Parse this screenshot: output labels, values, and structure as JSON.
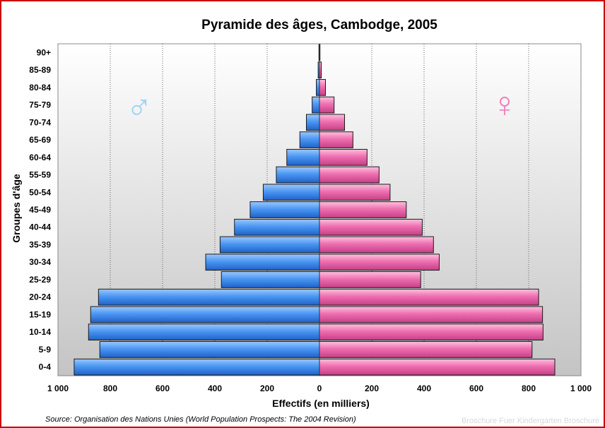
{
  "chart_data": {
    "type": "bar",
    "orientation": "horizontal-population-pyramid",
    "title": "Pyramide des âges, Cambodge, 2005",
    "xlabel": "Effectifs (en milliers)",
    "ylabel": "Groupes d'âge",
    "xlim": [
      -1000,
      1000
    ],
    "x_ticks": [
      -1000,
      -800,
      -600,
      -400,
      -200,
      0,
      200,
      400,
      600,
      800,
      1000
    ],
    "x_tick_labels": [
      "1 000",
      "800",
      "600",
      "400",
      "200",
      "0",
      "200",
      "400",
      "600",
      "800",
      "1 000"
    ],
    "grid": "vertical-dotted",
    "categories": [
      "0-4",
      "5-9",
      "10-14",
      "15-19",
      "20-24",
      "25-29",
      "30-34",
      "35-39",
      "40-44",
      "45-49",
      "50-54",
      "55-59",
      "60-64",
      "65-69",
      "70-74",
      "75-79",
      "80-84",
      "85-89",
      "90+"
    ],
    "series": [
      {
        "name": "♂",
        "color": "#3f8ff0",
        "values": [
          938,
          840,
          883,
          875,
          845,
          375,
          435,
          380,
          325,
          265,
          215,
          165,
          125,
          75,
          50,
          28,
          12,
          5,
          2
        ]
      },
      {
        "name": "♀",
        "color": "#ee6fb0",
        "values": [
          900,
          813,
          855,
          853,
          838,
          387,
          458,
          436,
          393,
          332,
          270,
          228,
          182,
          128,
          96,
          56,
          23,
          7,
          2
        ]
      }
    ],
    "source": "Source: Organisation des Nations Unies (World Population Prospects: The 2004 Revision)"
  },
  "watermark": "Broschure Fuer Kindergarten Broschure"
}
